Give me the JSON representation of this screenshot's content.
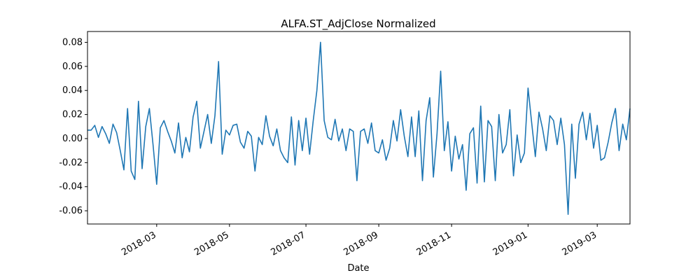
{
  "chart_data": {
    "type": "line",
    "title": "ALFA.ST_AdjClose Normalized",
    "x_label": "Date",
    "color": "#1f77b4",
    "categories": [
      null,
      null,
      null,
      null,
      null,
      null,
      null,
      null,
      null,
      null,
      null,
      null,
      null,
      null,
      null,
      null,
      null,
      null,
      null,
      "2018-03",
      null,
      null,
      null,
      null,
      null,
      null,
      null,
      null,
      null,
      null,
      null,
      null,
      null,
      null,
      null,
      null,
      null,
      null,
      null,
      "2018-05",
      null,
      null,
      null,
      null,
      null,
      null,
      null,
      null,
      null,
      null,
      null,
      null,
      null,
      null,
      null,
      null,
      null,
      null,
      null,
      null,
      "2018-07",
      null,
      null,
      null,
      null,
      null,
      null,
      null,
      null,
      null,
      null,
      null,
      null,
      null,
      null,
      null,
      null,
      null,
      null,
      null,
      "2018-09",
      null,
      null,
      null,
      null,
      null,
      null,
      null,
      null,
      null,
      null,
      null,
      null,
      null,
      null,
      null,
      null,
      null,
      null,
      null,
      "2018-11",
      null,
      null,
      null,
      null,
      null,
      null,
      null,
      null,
      null,
      null,
      null,
      null,
      null,
      null,
      null,
      null,
      null,
      null,
      null,
      null,
      "2019-01",
      null,
      null,
      null,
      null,
      null,
      null,
      null,
      null,
      null,
      null,
      null,
      null,
      null,
      null,
      null,
      null,
      null,
      null,
      "2019-03",
      null,
      null,
      null,
      null,
      null,
      null,
      null,
      null,
      null
    ],
    "values": [
      0.007,
      0.007,
      0.011,
      0.001,
      0.01,
      0.004,
      -0.004,
      0.012,
      0.005,
      -0.01,
      -0.026,
      0.025,
      -0.027,
      -0.034,
      0.031,
      -0.025,
      0.01,
      0.025,
      -0.005,
      -0.038,
      0.009,
      0.015,
      0.006,
      -0.002,
      -0.012,
      0.013,
      -0.016,
      0.001,
      -0.011,
      0.018,
      0.031,
      -0.008,
      0.006,
      0.02,
      -0.004,
      0.019,
      0.064,
      -0.013,
      0.007,
      0.003,
      0.011,
      0.012,
      -0.003,
      -0.008,
      0.006,
      0.002,
      -0.027,
      0.001,
      -0.005,
      0.019,
      0.002,
      -0.006,
      0.008,
      -0.01,
      -0.016,
      -0.02,
      0.018,
      -0.022,
      0.015,
      -0.01,
      0.017,
      -0.013,
      0.015,
      0.04,
      0.08,
      0.015,
      0.001,
      -0.001,
      0.016,
      -0.002,
      0.008,
      -0.01,
      0.008,
      0.006,
      -0.035,
      0.006,
      0.008,
      -0.004,
      0.013,
      -0.01,
      -0.012,
      -0.001,
      -0.018,
      -0.008,
      0.015,
      -0.002,
      0.024,
      0.002,
      -0.015,
      0.018,
      -0.015,
      0.023,
      -0.035,
      0.015,
      0.034,
      -0.032,
      0.004,
      0.056,
      -0.01,
      0.014,
      -0.027,
      0.002,
      -0.017,
      -0.005,
      -0.043,
      0.004,
      0.009,
      -0.037,
      0.027,
      -0.036,
      0.015,
      0.01,
      -0.035,
      0.02,
      -0.012,
      -0.005,
      0.024,
      -0.031,
      0.003,
      -0.02,
      -0.012,
      0.042,
      0.013,
      -0.015,
      0.022,
      0.008,
      -0.01,
      0.019,
      0.015,
      -0.005,
      0.017,
      -0.005,
      -0.063,
      0.012,
      -0.033,
      0.012,
      0.022,
      -0.001,
      0.021,
      -0.008,
      0.011,
      -0.018,
      -0.016,
      -0.003,
      0.013,
      0.025,
      -0.01,
      0.012,
      -0.001,
      0.025
    ],
    "ylim": [
      -0.071,
      0.089
    ],
    "yticks": [
      -0.06,
      -0.04,
      -0.02,
      {
        "value": 0,
        "label": "0.00"
      },
      0.02,
      0.04,
      0.06,
      0.08
    ]
  }
}
